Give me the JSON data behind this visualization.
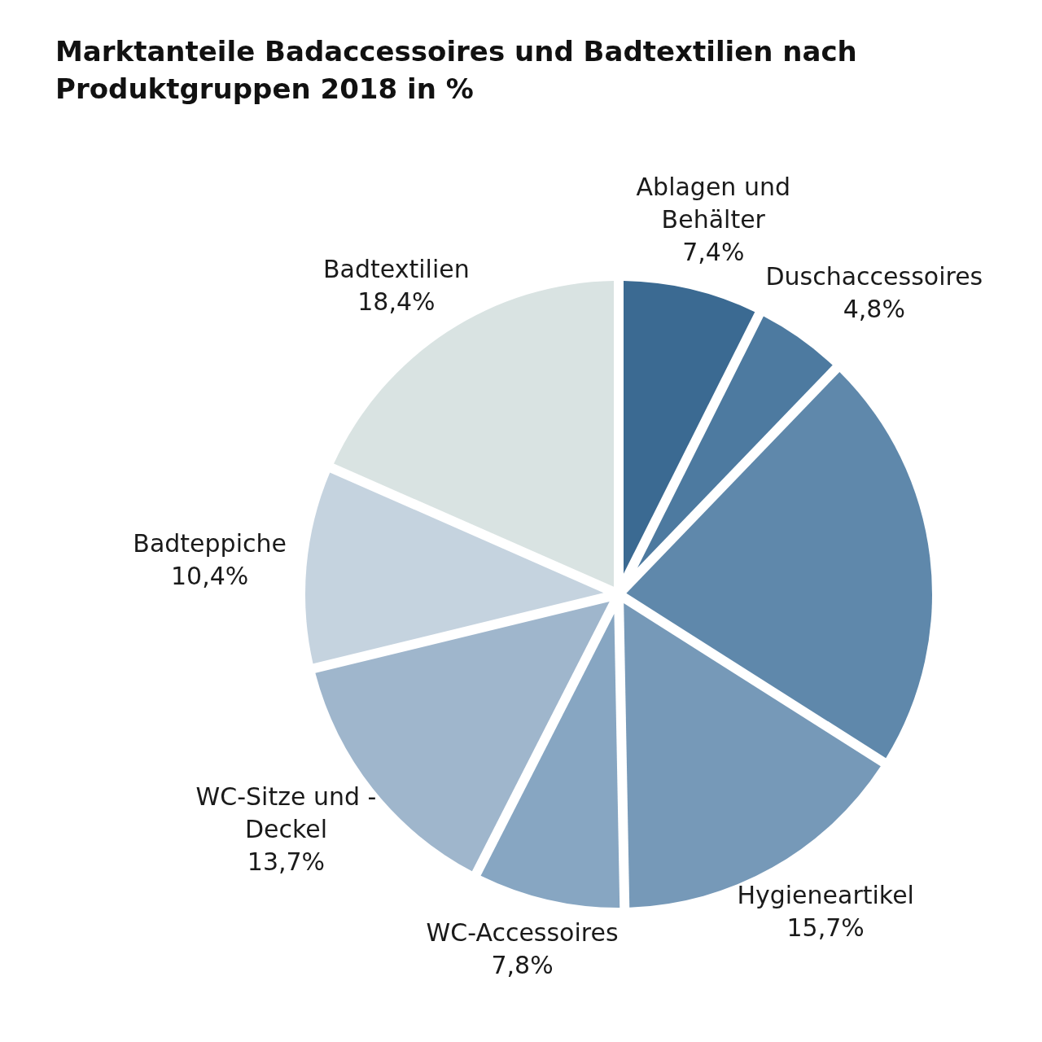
{
  "chart_data": {
    "type": "pie",
    "title": "Marktanteile Badaccessoires und Badtextilien nach Produktgruppen 2018 in %",
    "categories": [
      "Ablagen und Behälter",
      "Duschaccessoires",
      null,
      "Hygieneartikel",
      "WC-Accessoires",
      "WC-Sitze und -Deckel",
      "Badteppiche",
      "Badtextilien"
    ],
    "values": [
      7.4,
      4.8,
      21.8,
      15.7,
      7.8,
      13.7,
      10.4,
      18.4
    ],
    "value_labels": [
      "7,4%",
      "4,8%",
      null,
      "15,7%",
      "7,8%",
      "13,7%",
      "10,4%",
      "18,4%"
    ],
    "colors": [
      "#3b6a92",
      "#4d7aa0",
      "#5f88ab",
      "#7699b8",
      "#87a6c2",
      "#9fb6cc",
      "#c5d3df",
      "#d9e3e2"
    ]
  }
}
